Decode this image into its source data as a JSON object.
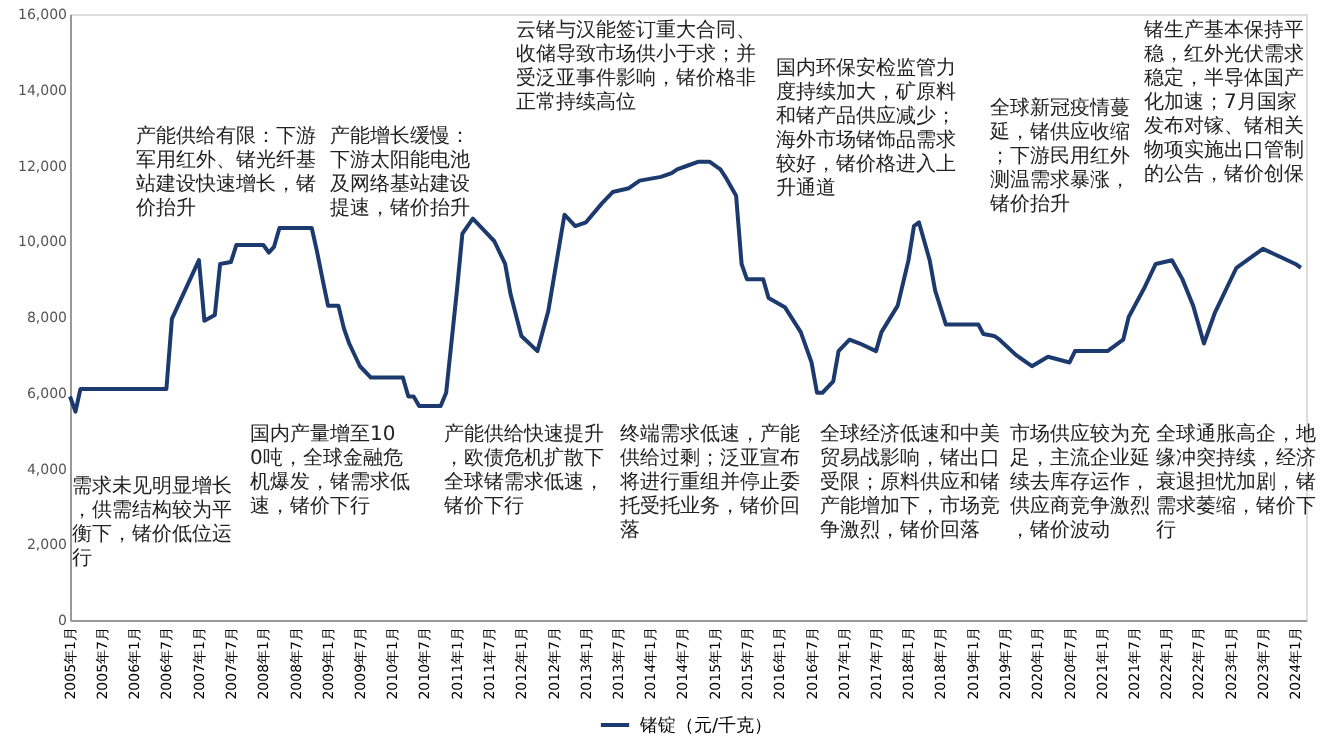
{
  "chart_data": {
    "type": "line",
    "x": [
      "2005-01",
      "2005-02",
      "2005-03",
      "2006-07",
      "2006-08",
      "2007-01",
      "2007-02",
      "2007-04",
      "2007-05",
      "2007-07",
      "2007-08",
      "2008-01",
      "2008-02",
      "2008-03",
      "2008-04",
      "2008-10",
      "2008-11",
      "2008-12",
      "2009-01",
      "2009-03",
      "2009-04",
      "2009-05",
      "2009-07",
      "2009-09",
      "2010-03",
      "2010-04",
      "2010-05",
      "2010-06",
      "2010-10",
      "2010-11",
      "2011-01",
      "2011-02",
      "2011-04",
      "2011-06",
      "2011-08",
      "2011-10",
      "2011-11",
      "2012-01",
      "2012-04",
      "2012-06",
      "2012-09",
      "2012-11",
      "2013-01",
      "2013-04",
      "2013-06",
      "2013-09",
      "2013-11",
      "2014-03",
      "2014-05",
      "2014-06",
      "2014-08",
      "2014-10",
      "2014-12",
      "2015-02",
      "2015-03",
      "2015-05",
      "2015-06",
      "2015-07",
      "2015-10",
      "2015-11",
      "2016-02",
      "2016-05",
      "2016-07",
      "2016-08",
      "2016-09",
      "2016-11",
      "2016-12",
      "2017-02",
      "2017-04",
      "2017-07",
      "2017-08",
      "2017-11",
      "2018-01",
      "2018-02",
      "2018-03",
      "2018-05",
      "2018-06",
      "2018-08",
      "2019-02",
      "2019-03",
      "2019-05",
      "2019-06",
      "2019-09",
      "2019-12",
      "2020-03",
      "2020-07",
      "2020-08",
      "2021-02",
      "2021-05",
      "2021-06",
      "2021-09",
      "2021-11",
      "2022-02",
      "2022-04",
      "2022-06",
      "2022-08",
      "2022-10",
      "2023-02",
      "2023-07",
      "2024-01",
      "2024-02"
    ],
    "series": [
      {
        "name": "锗锭（元/千克）",
        "color": "#1c3a6e",
        "values": [
          5900,
          5500,
          6100,
          6100,
          7950,
          9500,
          7900,
          8050,
          9400,
          9450,
          9900,
          9900,
          9700,
          9850,
          10350,
          10350,
          9700,
          9000,
          8300,
          8300,
          7700,
          7300,
          6700,
          6400,
          6400,
          5900,
          5900,
          5650,
          5650,
          6000,
          8700,
          10200,
          10600,
          10300,
          10000,
          9400,
          8600,
          7500,
          7100,
          8150,
          10700,
          10400,
          10500,
          11000,
          11300,
          11400,
          11600,
          11700,
          11800,
          11900,
          12000,
          12100,
          12100,
          11900,
          11700,
          11200,
          9400,
          9000,
          9000,
          8500,
          8260,
          7600,
          6800,
          6000,
          6000,
          6300,
          7100,
          7400,
          7300,
          7100,
          7600,
          8300,
          9500,
          10400,
          10500,
          9500,
          8700,
          7800,
          7800,
          7550,
          7500,
          7400,
          7000,
          6700,
          6950,
          6800,
          7100,
          7100,
          7400,
          8000,
          8800,
          9400,
          9500,
          9000,
          8300,
          7300,
          8100,
          9300,
          9800,
          9400,
          9300
        ]
      }
    ],
    "xlim": [
      "2005-01",
      "2024-03"
    ],
    "xticks": [
      {
        "value": "2005-01",
        "label": "2005年1月"
      },
      {
        "value": "2005-07",
        "label": "2005年7月"
      },
      {
        "value": "2006-01",
        "label": "2006年1月"
      },
      {
        "value": "2006-07",
        "label": "2006年7月"
      },
      {
        "value": "2007-01",
        "label": "2007年1月"
      },
      {
        "value": "2007-07",
        "label": "2007年7月"
      },
      {
        "value": "2008-01",
        "label": "2008年1月"
      },
      {
        "value": "2008-07",
        "label": "2008年7月"
      },
      {
        "value": "2009-01",
        "label": "2009年1月"
      },
      {
        "value": "2009-07",
        "label": "2009年7月"
      },
      {
        "value": "2010-01",
        "label": "2010年1月"
      },
      {
        "value": "2010-07",
        "label": "2010年7月"
      },
      {
        "value": "2011-01",
        "label": "2011年1月"
      },
      {
        "value": "2011-07",
        "label": "2011年7月"
      },
      {
        "value": "2012-01",
        "label": "2012年1月"
      },
      {
        "value": "2012-07",
        "label": "2012年7月"
      },
      {
        "value": "2013-01",
        "label": "2013年1月"
      },
      {
        "value": "2013-07",
        "label": "2013年7月"
      },
      {
        "value": "2014-01",
        "label": "2014年1月"
      },
      {
        "value": "2014-07",
        "label": "2014年7月"
      },
      {
        "value": "2015-01",
        "label": "2015年1月"
      },
      {
        "value": "2015-07",
        "label": "2015年7月"
      },
      {
        "value": "2016-01",
        "label": "2016年1月"
      },
      {
        "value": "2016-07",
        "label": "2016年7月"
      },
      {
        "value": "2017-01",
        "label": "2017年1月"
      },
      {
        "value": "2017-07",
        "label": "2017年7月"
      },
      {
        "value": "2018-01",
        "label": "2018年1月"
      },
      {
        "value": "2018-07",
        "label": "2018年7月"
      },
      {
        "value": "2019-01",
        "label": "2019年1月"
      },
      {
        "value": "2019-07",
        "label": "2019年7月"
      },
      {
        "value": "2020-01",
        "label": "2020年1月"
      },
      {
        "value": "2020-07",
        "label": "2020年7月"
      },
      {
        "value": "2021-01",
        "label": "2021年1月"
      },
      {
        "value": "2021-07",
        "label": "2021年7月"
      },
      {
        "value": "2022-01",
        "label": "2022年1月"
      },
      {
        "value": "2022-07",
        "label": "2022年7月"
      },
      {
        "value": "2023-01",
        "label": "2023年1月"
      },
      {
        "value": "2023-07",
        "label": "2023年7月"
      },
      {
        "value": "2024-01",
        "label": "2024年1月"
      }
    ],
    "ylim": [
      0,
      16000
    ],
    "yticks": [
      0,
      {
        "value": 2000,
        "label": "2,000"
      },
      {
        "value": 4000,
        "label": "4,000"
      },
      {
        "value": 6000,
        "label": "6,000"
      },
      {
        "value": 8000,
        "label": "8,000"
      },
      {
        "value": 10000,
        "label": "10,000"
      },
      {
        "value": 12000,
        "label": "12,000"
      },
      {
        "value": 14000,
        "label": "14,000"
      },
      {
        "value": 16000,
        "label": "16,000"
      }
    ],
    "grid": false,
    "legend": "bottom",
    "marker": "none",
    "line_style": "solid",
    "annotations": [
      "需求未见明显增长，供需结构较为平衡下，锗价低位运行",
      "产能供给有限：下游军用红外、锗光纤基站建设快速增长，锗价抬升",
      "国内产量增至100吨，全球金融危机爆发，锗需求低速，锗价下行",
      "产能增长缓慢：下游太阳能电池及网络基站建设提速，锗价抬升",
      "产能供给快速提升，欧债危机扩散下全球锗需求低速，锗价下行",
      "云锗与汉能签订重大合同、收储导致市场供小于求；并受泛亚事件影响，锗价格非正常持续高位",
      "终端需求低速，产能供给过剩；泛亚宣布将进行重组并停止委托受托业务，锗价回落",
      "国内环保安检监管力度持续加大，矿原料和锗产品供应减少；海外市场锗饰品需求较好，锗价格进入上升通道",
      "全球经济低速和中美贸易战影响，锗出口受限；原料供应和锗产能增加下，市场竞争激烈，锗价回落",
      "全球新冠疫情蔓延，锗供应收缩；下游民用红外测温需求暴涨，锗价抬升",
      "市场供应较为充足，主流企业延续去库存运作，供应商竞争激烈，锗价波动",
      "锗生产基本保持平稳，红外光伏需求稳定，半导体国产化加速；7月国家发布对镓、锗相关物项实施出口管制的公告，锗价创保",
      "全球通胀高企，地缘冲突持续，经济衰退担忧加剧，锗需求萎缩，锗价下行"
    ]
  }
}
